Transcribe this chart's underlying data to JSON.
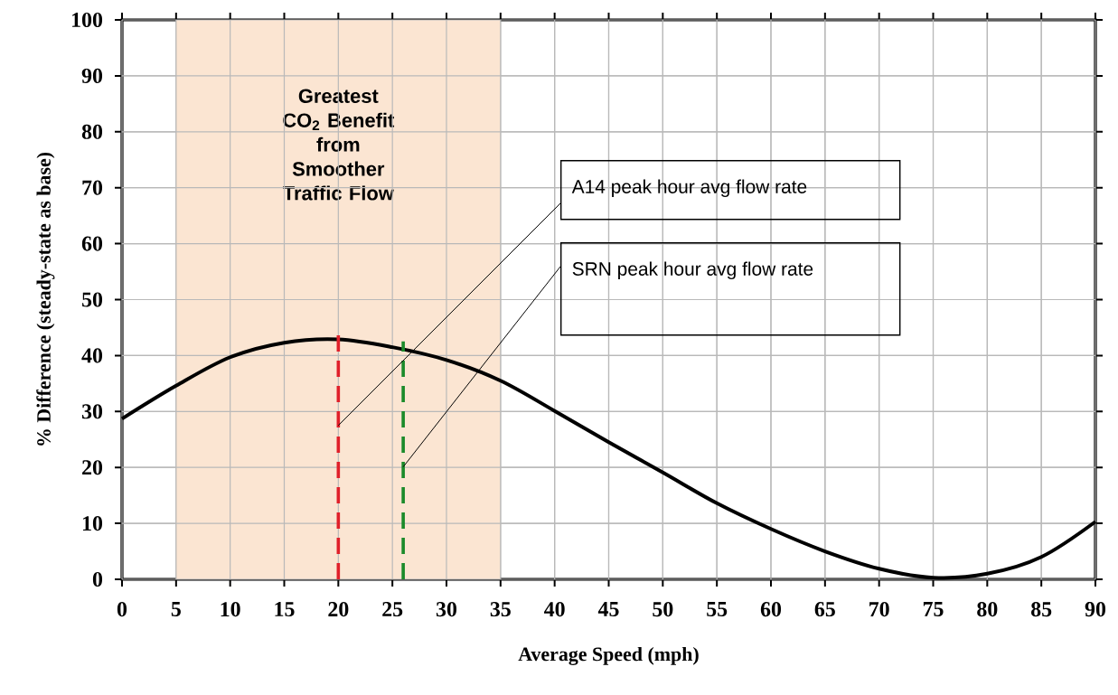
{
  "chart_data": {
    "type": "line",
    "xlabel": "Average Speed (mph)",
    "ylabel": "% Difference (steady-state as base)",
    "x": [
      0,
      5,
      10,
      15,
      20,
      25,
      30,
      35,
      40,
      45,
      50,
      55,
      60,
      65,
      70,
      75,
      80,
      85,
      90
    ],
    "series": [
      {
        "color": "#000000",
        "values": [
          28.7,
          34.6,
          39.7,
          42.3,
          42.9,
          41.5,
          39.2,
          35.5,
          30.1,
          24.5,
          19.1,
          13.6,
          9,
          5,
          1.9,
          0.3,
          1,
          4,
          10.3
        ]
      }
    ],
    "xlim": [
      0,
      90
    ],
    "ylim": [
      0,
      100
    ],
    "xticks": [
      0,
      5,
      10,
      15,
      20,
      25,
      30,
      35,
      40,
      45,
      50,
      55,
      60,
      65,
      70,
      75,
      80,
      85,
      90
    ],
    "yticks": [
      0,
      10,
      20,
      30,
      40,
      50,
      60,
      70,
      80,
      90,
      100
    ],
    "grid": true,
    "marker": "none",
    "bands": [
      {
        "axis": "x",
        "from": 5,
        "to": 35,
        "label": "Greatest CO$_{2}$ Benefit from Smoother Traffic Flow",
        "color": "#fbe5d2"
      }
    ],
    "ref_lines": [
      {
        "axis": "x",
        "value": 20,
        "color": "#e0202a",
        "line_style": "dashed"
      },
      {
        "axis": "x",
        "value": 26,
        "color": "#1a8a2a",
        "line_style": "dashed"
      }
    ],
    "annotations": [
      {
        "text": "A14 peak hour avg flow rate",
        "x": 20,
        "y": 27.5
      },
      {
        "text": "SRN peak hour avg flow rate",
        "x": 26,
        "y": 20.1
      }
    ]
  }
}
